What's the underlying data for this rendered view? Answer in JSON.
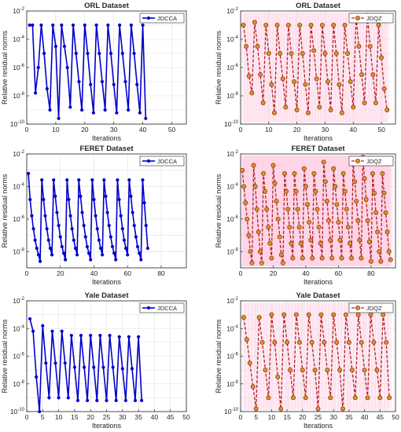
{
  "figure": {
    "ylabel": "Relative residual norms",
    "xlabel": "Iterations"
  },
  "chart_data": [
    {
      "type": "line",
      "title": "ORL Dataset",
      "series_name": "JDCCA",
      "style": "jdcca",
      "xlim": [
        0,
        55
      ],
      "xticks": [
        0,
        10,
        20,
        30,
        40,
        50
      ],
      "ylim_exp": [
        -10,
        -2
      ],
      "yticks_exp": [
        -10,
        -8,
        -6,
        -4,
        -2
      ],
      "y_scale": "log",
      "xlabel": "Iterations",
      "ylabel": "Relative residual norms",
      "legend": "top-right",
      "grid": true,
      "x": [
        1,
        2,
        3,
        4,
        5,
        6,
        7,
        8,
        9,
        10,
        11,
        12,
        13,
        14,
        15,
        16,
        17,
        18,
        19,
        20,
        21,
        22,
        23,
        24,
        25,
        26,
        27,
        28,
        29,
        30,
        31,
        32,
        33,
        34,
        35,
        36,
        37,
        38,
        39,
        40,
        41
      ],
      "y_exp": [
        -3,
        -3,
        -7.8,
        -6,
        -3,
        -5,
        -7.5,
        -9,
        -3,
        -4.5,
        -9.6,
        -3,
        -4.5,
        -6,
        -8.8,
        -3,
        -5,
        -7,
        -9,
        -3,
        -5,
        -7.2,
        -9.2,
        -3,
        -5,
        -7,
        -9,
        -3,
        -5,
        -7.2,
        -9.2,
        -3,
        -5,
        -7,
        -9,
        -3,
        -5,
        -7.2,
        -9.2,
        -3,
        -9.6
      ]
    },
    {
      "type": "line",
      "title": "ORL Dataset",
      "series_name": "JDQZ",
      "style": "jdqz",
      "xlim": [
        0,
        55
      ],
      "xticks": [
        0,
        10,
        20,
        30,
        40,
        50
      ],
      "ylim_exp": [
        -10,
        -2
      ],
      "yticks_exp": [
        -10,
        -8,
        -6,
        -4,
        -2
      ],
      "y_scale": "log",
      "xlabel": "Iterations",
      "ylabel": "Relative residual norms",
      "legend": "top-right",
      "grid": true,
      "x": [
        1,
        2,
        3,
        4,
        5,
        6,
        7,
        8,
        9,
        10,
        11,
        12,
        13,
        14,
        15,
        16,
        17,
        18,
        19,
        20,
        21,
        22,
        23,
        24,
        25,
        26,
        27,
        28,
        29,
        30,
        31,
        32,
        33,
        34,
        35,
        36,
        37,
        38,
        39,
        40,
        41,
        42,
        43,
        44,
        45,
        46,
        47,
        48,
        49,
        50,
        51,
        52
      ],
      "y_exp": [
        -3,
        -4.5,
        -6.6,
        -7.8,
        -2.8,
        -4.5,
        -6.5,
        -8.5,
        -3,
        -5,
        -7.2,
        -9.2,
        -3,
        -5,
        -6.8,
        -8.8,
        -3,
        -5,
        -7,
        -9,
        -3,
        -5,
        -7.2,
        -9.2,
        -3,
        -4.8,
        -6.8,
        -8.8,
        -3,
        -5,
        -7,
        -9,
        -3,
        -5,
        -7.2,
        -9.2,
        -3,
        -5,
        -7,
        -8.8,
        -2.4,
        -4.5,
        -6.5,
        -8.5,
        -2.3,
        -4.5,
        -6.5,
        -8.5,
        -3,
        -5.3,
        -7.5,
        -9
      ]
    },
    {
      "type": "line",
      "title": "FERET Dataset",
      "series_name": "JDCCA",
      "style": "jdcca",
      "xlim": [
        0,
        95
      ],
      "xticks": [
        0,
        20,
        40,
        60,
        80
      ],
      "ylim_exp": [
        -9,
        -2
      ],
      "yticks_exp": [
        -8,
        -6,
        -4,
        -2
      ],
      "y_scale": "log",
      "xlabel": "Iterations",
      "ylabel": "Relative residual norms",
      "legend": "top-right",
      "grid": true,
      "x": [
        1,
        2,
        3,
        4,
        5,
        6,
        7,
        8,
        9,
        10,
        11,
        12,
        13,
        14,
        15,
        16,
        17,
        18,
        19,
        20,
        21,
        22,
        23,
        24,
        25,
        26,
        27,
        28,
        29,
        30,
        31,
        32,
        33,
        34,
        35,
        36,
        37,
        38,
        39,
        40,
        41,
        42,
        43,
        44,
        45,
        46,
        47,
        48,
        49,
        50,
        51,
        52,
        53,
        54,
        55,
        56,
        57,
        58,
        59,
        60,
        61,
        62,
        63,
        64,
        65,
        66,
        67,
        68,
        69,
        70,
        71,
        72
      ],
      "y_exp": [
        -3.2,
        -4.8,
        -5.8,
        -6.6,
        -7.3,
        -7.8,
        -8.2,
        -8.6,
        -3.6,
        -4.8,
        -5.8,
        -6.6,
        -7.3,
        -7.8,
        -8.2,
        -3.6,
        -4.6,
        -5.6,
        -6.4,
        -7.1,
        -7.7,
        -8.1,
        -8.5,
        -3.6,
        -4.8,
        -5.8,
        -6.6,
        -7.3,
        -7.8,
        -8.2,
        -3.6,
        -4.6,
        -5.6,
        -6.4,
        -7.1,
        -7.7,
        -8.1,
        -8.5,
        -3.6,
        -4.8,
        -5.8,
        -6.6,
        -7.3,
        -7.8,
        -8.2,
        -3.6,
        -4.6,
        -5.6,
        -6.4,
        -7.1,
        -7.7,
        -8.1,
        -8.5,
        -3.6,
        -4.8,
        -5.8,
        -6.6,
        -7.3,
        -7.8,
        -8.2,
        -3.6,
        -4.6,
        -5.6,
        -6.4,
        -7.1,
        -7.7,
        -8.1,
        -8.5,
        -3.6,
        -5,
        -6.4,
        -7.8
      ]
    },
    {
      "type": "line",
      "title": "FERET Dataset",
      "series_name": "JDQZ",
      "style": "jdqz",
      "xlim": [
        0,
        95
      ],
      "xticks": [
        0,
        20,
        40,
        60,
        80
      ],
      "ylim_exp": [
        -9,
        -2
      ],
      "yticks_exp": [
        -8,
        -6,
        -4,
        -2
      ],
      "y_scale": "log",
      "xlabel": "Iterations",
      "ylabel": "Relative residual norms",
      "legend": "top-right",
      "grid": true,
      "x": [
        1,
        2,
        3,
        4,
        5,
        6,
        7,
        8,
        9,
        10,
        11,
        12,
        13,
        14,
        15,
        16,
        17,
        18,
        19,
        20,
        21,
        22,
        23,
        24,
        25,
        26,
        27,
        28,
        29,
        30,
        31,
        32,
        33,
        34,
        35,
        36,
        37,
        38,
        39,
        40,
        41,
        42,
        43,
        44,
        45,
        46,
        47,
        48,
        49,
        50,
        51,
        52,
        53,
        54,
        55,
        56,
        57,
        58,
        59,
        60,
        61,
        62,
        63,
        64,
        65,
        66,
        67,
        68,
        69,
        70,
        71,
        72,
        73,
        74,
        75,
        76,
        77,
        78,
        79,
        80,
        81,
        82,
        83,
        84,
        85,
        86,
        87,
        88,
        89,
        90,
        91,
        92
      ],
      "y_exp": [
        -3,
        -4,
        -5,
        -6,
        -7,
        -8,
        -8.7,
        -2.7,
        -4,
        -5.4,
        -6.8,
        -8,
        -8.7,
        -3.2,
        -4.3,
        -5.4,
        -6.5,
        -7.5,
        -8.4,
        -2.7,
        -3.8,
        -4.9,
        -6,
        -7.1,
        -8.2,
        -8.7,
        -3.2,
        -4.3,
        -5.4,
        -6.5,
        -7.5,
        -8.4,
        -3.2,
        -4.3,
        -5.4,
        -6.5,
        -7.5,
        -8.4,
        -2.9,
        -4,
        -5.1,
        -6.2,
        -7.3,
        -8.4,
        -3.2,
        -4.3,
        -5.4,
        -6.5,
        -7.5,
        -8.4,
        -2.5,
        -3.7,
        -4.9,
        -6.1,
        -7.3,
        -8.4,
        -2.9,
        -4,
        -5.1,
        -6.2,
        -7.3,
        -8.4,
        -3.2,
        -4.3,
        -5.4,
        -6.5,
        -7.5,
        -8.4,
        -2.5,
        -3.7,
        -4.9,
        -6.1,
        -7.3,
        -8.4,
        -2.2,
        -3.5,
        -4.8,
        -6.1,
        -7.4,
        -8.6,
        -3.2,
        -4.4,
        -5.6,
        -6.8,
        -8,
        -8.6,
        -3.2,
        -4.4,
        -5.6,
        -6.8,
        -8,
        -8.5
      ]
    },
    {
      "type": "line",
      "title": "Yale Dataset",
      "series_name": "JDCCA",
      "style": "jdcca",
      "xlim": [
        0,
        50
      ],
      "xticks": [
        0,
        5,
        10,
        15,
        20,
        25,
        30,
        35,
        40,
        45,
        50
      ],
      "ylim_exp": [
        -10,
        -2
      ],
      "yticks_exp": [
        -10,
        -8,
        -6,
        -4,
        -2
      ],
      "y_scale": "log",
      "xlabel": "Iterations",
      "ylabel": "Relative residual norms",
      "legend": "top-right",
      "grid": true,
      "x": [
        1,
        2,
        3,
        4,
        5,
        6,
        7,
        8,
        9,
        10,
        11,
        12,
        13,
        14,
        15,
        16,
        17,
        18,
        19,
        20,
        21,
        22,
        23,
        24,
        25,
        26,
        27,
        28,
        29,
        30,
        31,
        32,
        33,
        34,
        35,
        36
      ],
      "y_exp": [
        -3.3,
        -4.2,
        -7.5,
        -10,
        -3.8,
        -6.5,
        -9,
        -4.2,
        -6.5,
        -9,
        -4.2,
        -6.5,
        -9,
        -4.5,
        -6.8,
        -9.2,
        -4.5,
        -6.8,
        -9.2,
        -4.5,
        -6.8,
        -9.2,
        -4.5,
        -6.8,
        -9.2,
        -4.5,
        -6.8,
        -9.2,
        -4.6,
        -6.9,
        -9.2,
        -4.6,
        -6.9,
        -9.2,
        -4.6,
        -9.2
      ]
    },
    {
      "type": "line",
      "title": "Yale Dataset",
      "series_name": "JDQZ",
      "style": "jdqz",
      "xlim": [
        0,
        50
      ],
      "xticks": [
        0,
        5,
        10,
        15,
        20,
        25,
        30,
        35,
        40,
        45,
        50
      ],
      "ylim_exp": [
        -10,
        -2
      ],
      "yticks_exp": [
        -10,
        -8,
        -6,
        -4,
        -2
      ],
      "y_scale": "log",
      "xlabel": "Iterations",
      "ylabel": "Relative residual norms",
      "legend": "top-right",
      "grid": true,
      "x": [
        1,
        2,
        3,
        4,
        5,
        6,
        7,
        8,
        9,
        10,
        11,
        12,
        13,
        14,
        15,
        16,
        17,
        18,
        19,
        20,
        21,
        22,
        23,
        24,
        25,
        26,
        27,
        28,
        29,
        30,
        31,
        32,
        33,
        34,
        35,
        36,
        37,
        38,
        39,
        40,
        41,
        42,
        43,
        44,
        45,
        46,
        47,
        48
      ],
      "y_exp": [
        -3.2,
        -4.8,
        -6.5,
        -8.2,
        -9.8,
        -3.2,
        -5,
        -7,
        -9,
        -3,
        -5,
        -7.5,
        -9.8,
        -3,
        -5,
        -7,
        -9,
        -3,
        -5,
        -7,
        -9,
        -3,
        -5,
        -7,
        -9.8,
        -3,
        -5,
        -7,
        -9,
        -3,
        -5,
        -7,
        -9.8,
        -3,
        -5,
        -7,
        -9,
        -3,
        -5,
        -7,
        -9,
        -3,
        -5,
        -7,
        -9,
        -3,
        -5,
        -9
      ]
    }
  ]
}
